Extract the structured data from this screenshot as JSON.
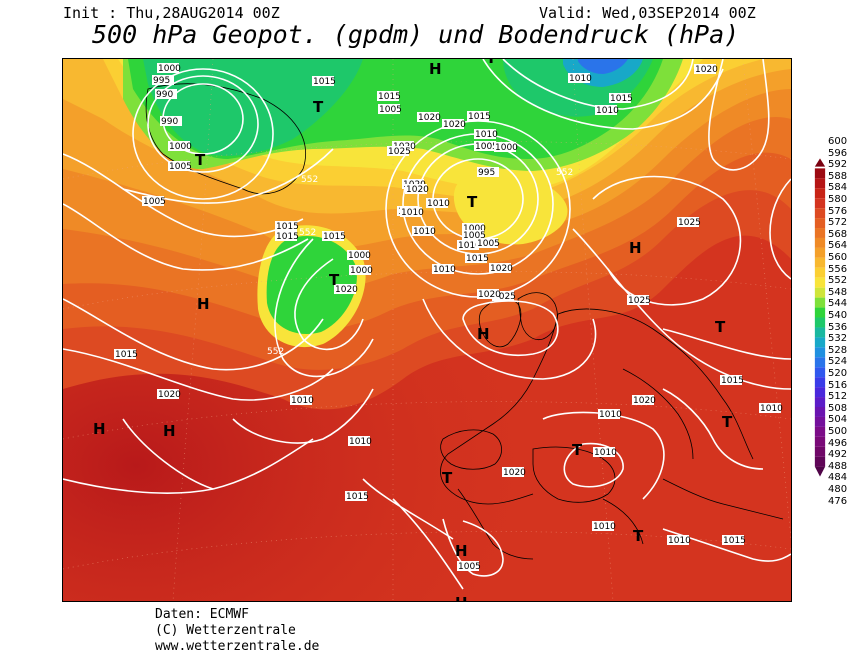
{
  "header": {
    "init": "Init : Thu,28AUG2014 00Z",
    "valid": "Valid: Wed,03SEP2014 00Z",
    "title": "500 hPa Geopot. (gpdm) und Bodendruck (hPa)"
  },
  "legend": {
    "values": [
      "600",
      "596",
      "592",
      "588",
      "584",
      "580",
      "576",
      "572",
      "568",
      "564",
      "560",
      "556",
      "552",
      "548",
      "544",
      "540",
      "536",
      "532",
      "528",
      "524",
      "520",
      "516",
      "512",
      "508",
      "504",
      "500",
      "496",
      "492",
      "488",
      "484",
      "480",
      "476"
    ],
    "colors": [
      "#7a0010",
      "#9c0a12",
      "#b51515",
      "#c82416",
      "#d4341f",
      "#dd4a22",
      "#e45e22",
      "#ea7424",
      "#ef8a26",
      "#f4a02a",
      "#f8b830",
      "#fbcf33",
      "#f8e43a",
      "#cfe53a",
      "#7ee03a",
      "#2fd43a",
      "#1ec86a",
      "#1ab8a0",
      "#18a8c8",
      "#2090e0",
      "#2a74ea",
      "#3058ee",
      "#3a3ce8",
      "#4a28dc",
      "#5c1cc8",
      "#6a14b0",
      "#74109c",
      "#7c0c88",
      "#7a0a78",
      "#700868",
      "#600658",
      "#500448"
    ]
  },
  "map": {
    "pressure_labels": [
      "1000",
      "995",
      "990",
      "990",
      "1000",
      "1005",
      "1005",
      "1015",
      "1015",
      "1015",
      "1015",
      "1020",
      "1020",
      "1015",
      "1020",
      "1020",
      "1025",
      "1020",
      "1020",
      "1010",
      "1005",
      "1000",
      "995",
      "1000",
      "1005",
      "1010",
      "1015",
      "1020",
      "1025",
      "1025",
      "1010",
      "1015",
      "1020",
      "1015",
      "1020",
      "1010",
      "1010",
      "1010",
      "1010",
      "1015",
      "1015",
      "1020",
      "1020",
      "1020",
      "1025",
      "1020",
      "1005",
      "1010",
      "1010",
      "1015",
      "1010",
      "1010",
      "1010",
      "1015",
      "1005",
      "1010",
      "1000",
      "1010",
      "1010",
      "1005",
      "1000"
    ],
    "height_labels": [
      "552",
      "552",
      "552",
      "552"
    ],
    "pressure_centers": [
      {
        "label": "H",
        "kind": "high"
      },
      {
        "label": "H",
        "kind": "high"
      },
      {
        "label": "H",
        "kind": "high"
      },
      {
        "label": "H",
        "kind": "high"
      },
      {
        "label": "H",
        "kind": "high"
      },
      {
        "label": "H",
        "kind": "high"
      },
      {
        "label": "H",
        "kind": "high"
      },
      {
        "label": "T",
        "kind": "low"
      },
      {
        "label": "T",
        "kind": "low"
      },
      {
        "label": "T",
        "kind": "low"
      },
      {
        "label": "T",
        "kind": "low"
      },
      {
        "label": "T",
        "kind": "low"
      },
      {
        "label": "T",
        "kind": "low"
      },
      {
        "label": "T",
        "kind": "low"
      },
      {
        "label": "T",
        "kind": "low"
      },
      {
        "label": "T",
        "kind": "low"
      },
      {
        "label": "T",
        "kind": "low"
      },
      {
        "label": "H",
        "kind": "high"
      }
    ]
  },
  "footer": {
    "data_source": "Daten: ECMWF",
    "copyright": "(C) Wetterzentrale",
    "url": "www.wetterzentrale.de"
  }
}
